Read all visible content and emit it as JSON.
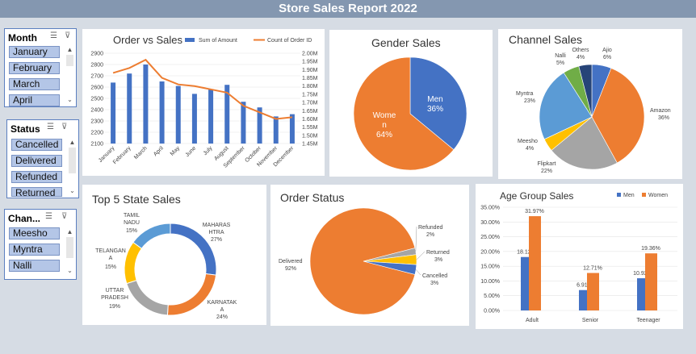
{
  "report_title": "Store Sales Report 2022",
  "slicers": {
    "month": {
      "header": "Month",
      "items": [
        "January",
        "February",
        "March",
        "April"
      ]
    },
    "status": {
      "header": "Status",
      "items": [
        "Cancelled",
        "Delivered",
        "Refunded",
        "Returned"
      ]
    },
    "channel": {
      "header": "Chan...",
      "items": [
        "Meesho",
        "Myntra",
        "Nalli"
      ]
    }
  },
  "colors": {
    "blue": "#4472c4",
    "orange": "#ed7d31",
    "gray": "#a5a5a5",
    "yellow": "#ffc000",
    "lightblue": "#5b9bd5",
    "green": "#70ad47",
    "navy": "#264478"
  },
  "chart_data": [
    {
      "type": "bar",
      "title": "Order vs Sales",
      "categories": [
        "January",
        "February",
        "March",
        "April",
        "May",
        "June",
        "July",
        "August",
        "September",
        "October",
        "November",
        "December"
      ],
      "series": [
        {
          "name": "Sum of Amount",
          "type": "bar",
          "values": [
            2640,
            2720,
            2800,
            2650,
            2610,
            2540,
            2580,
            2620,
            2470,
            2420,
            2340,
            2360
          ]
        },
        {
          "name": "Count of Order ID",
          "type": "line",
          "axis": "right",
          "values": [
            1.88,
            1.91,
            1.96,
            1.85,
            1.81,
            1.8,
            1.78,
            1.76,
            1.68,
            1.64,
            1.6,
            1.61
          ]
        }
      ],
      "y_ticks": [
        "2900",
        "2800",
        "2700",
        "2600",
        "2500",
        "2400",
        "2300",
        "2200",
        "2100"
      ],
      "ylim": [
        2100,
        2900
      ],
      "y2_ticks": [
        "2.00M",
        "1.95M",
        "1.90M",
        "1.85M",
        "1.80M",
        "1.75M",
        "1.70M",
        "1.65M",
        "1.60M",
        "1.55M",
        "1.50M",
        "1.45M"
      ],
      "y2lim": [
        1.45,
        2.0
      ],
      "legend_position": "top-right"
    },
    {
      "type": "pie",
      "title": "Gender Sales",
      "slices": [
        {
          "label": "Men",
          "pct": "36%",
          "value": 36
        },
        {
          "label": "Women",
          "pct": "64%",
          "value": 64
        }
      ]
    },
    {
      "type": "pie",
      "title": "Channel Sales",
      "slices": [
        {
          "label": "Ajio",
          "pct": "6%",
          "value": 6
        },
        {
          "label": "Amazon",
          "pct": "36%",
          "value": 36
        },
        {
          "label": "Flipkart",
          "pct": "22%",
          "value": 22
        },
        {
          "label": "Meesho",
          "pct": "4%",
          "value": 4
        },
        {
          "label": "Myntra",
          "pct": "23%",
          "value": 23
        },
        {
          "label": "Nalli",
          "pct": "5%",
          "value": 5
        },
        {
          "label": "Others",
          "pct": "4%",
          "value": 4
        }
      ]
    },
    {
      "type": "pie",
      "title": "Top 5 State Sales",
      "donut": true,
      "slices": [
        {
          "label": "MAHARASHTRA",
          "pct": "27%",
          "value": 27
        },
        {
          "label": "KARNATAKA",
          "pct": "24%",
          "value": 24
        },
        {
          "label": "UTTAR PRADESH",
          "pct": "19%",
          "value": 19
        },
        {
          "label": "TELANGANA",
          "pct": "15%",
          "value": 15
        },
        {
          "label": "TAMIL NADU",
          "pct": "15%",
          "value": 15
        }
      ]
    },
    {
      "type": "pie",
      "title": "Order Status",
      "slices": [
        {
          "label": "Delivered",
          "pct": "92%",
          "value": 92
        },
        {
          "label": "Refunded",
          "pct": "2%",
          "value": 2
        },
        {
          "label": "Returned",
          "pct": "3%",
          "value": 3
        },
        {
          "label": "Cancelled",
          "pct": "3%",
          "value": 3
        }
      ]
    },
    {
      "type": "bar",
      "title": "Age Group Sales",
      "categories": [
        "Adult",
        "Senior",
        "Teenager"
      ],
      "series": [
        {
          "name": "Men",
          "values": [
            18.12,
            6.91,
            10.92
          ],
          "labels": [
            "18.12%",
            "6.91%",
            "10.92%"
          ]
        },
        {
          "name": "Women",
          "values": [
            31.97,
            12.71,
            19.36
          ],
          "labels": [
            "31.97%",
            "12.71%",
            "19.36%"
          ]
        }
      ],
      "y_ticks": [
        "35.00%",
        "30.00%",
        "25.00%",
        "20.00%",
        "15.00%",
        "10.00%",
        "5.00%",
        "0.00%"
      ],
      "ylim": [
        0,
        35
      ],
      "legend_position": "top-right"
    }
  ]
}
